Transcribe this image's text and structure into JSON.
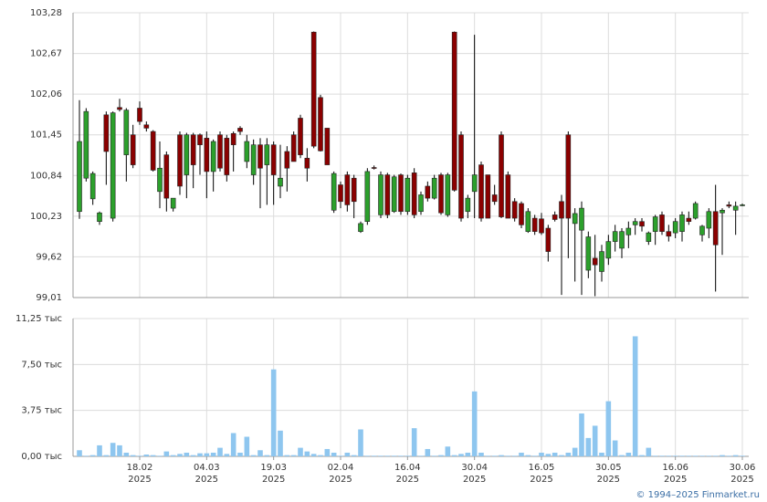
{
  "chart_data": [
    {
      "type": "candlestick",
      "up_color": "#2ca02c",
      "down_color": "#8b0000",
      "ylim": [
        99.01,
        103.28
      ],
      "yticks": [
        {
          "value": 99.01,
          "label": "99,01"
        },
        {
          "value": 99.62,
          "label": "99,62"
        },
        {
          "value": 100.23,
          "label": "100,23"
        },
        {
          "value": 100.84,
          "label": "100,84"
        },
        {
          "value": 101.45,
          "label": "101,45"
        },
        {
          "value": 102.06,
          "label": "102,06"
        },
        {
          "value": 102.67,
          "label": "102,67"
        },
        {
          "value": 103.28,
          "label": "103,28"
        }
      ],
      "grid": true,
      "open": [
        100.3,
        100.8,
        100.49,
        100.15,
        101.75,
        100.2,
        101.86,
        101.15,
        101.45,
        101.85,
        101.6,
        101.5,
        100.6,
        101.15,
        100.35,
        101.45,
        100.85,
        101.45,
        101.45,
        101.4,
        100.9,
        101.45,
        101.4,
        101.47,
        101.55,
        101.05,
        100.85,
        101.3,
        101.0,
        101.3,
        100.68,
        101.2,
        101.45,
        101.7,
        101.1,
        102.99,
        102.01,
        101.55,
        100.32,
        100.7,
        100.85,
        100.8,
        100.0,
        100.15,
        100.96,
        100.25,
        100.85,
        100.3,
        100.85,
        100.3,
        100.88,
        100.3,
        100.68,
        100.5,
        100.85,
        100.25,
        102.99,
        101.45,
        100.3,
        100.6,
        101.0,
        100.85,
        100.55,
        101.45,
        100.85,
        100.45,
        100.42,
        100.0,
        100.2,
        100.19,
        100.05,
        100.25,
        100.45,
        101.45,
        100.12,
        100.02,
        99.42,
        99.6,
        99.4,
        99.6,
        99.85,
        99.75,
        99.95,
        100.1,
        100.15,
        99.85,
        100.0,
        100.25,
        100.0,
        99.98,
        100.0,
        100.2,
        100.2,
        99.95,
        100.05,
        100.3,
        100.28,
        100.4,
        100.32,
        100.4
      ],
      "high": [
        101.97,
        101.85,
        100.9,
        100.3,
        101.8,
        101.8,
        101.99,
        101.85,
        101.6,
        101.95,
        101.65,
        101.52,
        101.35,
        101.2,
        100.5,
        101.5,
        101.48,
        101.48,
        101.47,
        101.5,
        101.38,
        101.5,
        101.45,
        101.5,
        101.58,
        101.45,
        101.38,
        101.4,
        101.4,
        101.35,
        101.3,
        101.28,
        101.5,
        101.75,
        101.25,
        103.0,
        102.05,
        101.55,
        100.9,
        100.75,
        100.9,
        100.85,
        100.15,
        100.95,
        100.99,
        100.9,
        100.88,
        100.85,
        100.87,
        100.85,
        100.95,
        100.6,
        100.75,
        100.85,
        100.88,
        100.88,
        103.0,
        101.5,
        100.55,
        102.95,
        101.05,
        100.85,
        100.7,
        101.5,
        100.9,
        100.5,
        100.45,
        100.35,
        100.25,
        100.28,
        100.1,
        100.3,
        100.55,
        101.5,
        100.35,
        100.45,
        100.0,
        99.95,
        99.8,
        99.95,
        100.1,
        100.05,
        100.15,
        100.2,
        100.2,
        100.0,
        100.25,
        100.3,
        100.1,
        100.2,
        100.3,
        100.3,
        100.45,
        100.1,
        100.35,
        100.7,
        100.35,
        100.45,
        100.45,
        100.42
      ],
      "low": [
        100.19,
        100.75,
        100.4,
        100.1,
        100.7,
        100.15,
        101.8,
        100.75,
        100.95,
        101.6,
        101.5,
        100.9,
        100.35,
        100.3,
        100.3,
        100.55,
        100.5,
        100.65,
        100.85,
        100.5,
        100.6,
        100.9,
        100.75,
        100.9,
        101.45,
        100.95,
        100.7,
        100.35,
        100.4,
        100.4,
        100.5,
        100.6,
        101.05,
        101.1,
        100.75,
        101.25,
        101.2,
        101.0,
        100.28,
        100.35,
        100.3,
        100.2,
        99.98,
        100.1,
        100.93,
        100.2,
        100.2,
        100.28,
        100.25,
        100.25,
        100.2,
        100.25,
        100.45,
        100.48,
        100.25,
        100.22,
        100.6,
        100.15,
        100.2,
        100.2,
        100.15,
        100.2,
        100.4,
        100.2,
        100.2,
        100.15,
        100.05,
        99.98,
        99.95,
        99.95,
        99.55,
        100.15,
        99.05,
        99.6,
        99.25,
        99.05,
        99.3,
        99.03,
        99.25,
        99.5,
        99.7,
        99.6,
        99.75,
        99.95,
        100.0,
        99.8,
        99.8,
        99.95,
        99.85,
        99.9,
        99.85,
        100.1,
        100.18,
        99.85,
        99.9,
        99.1,
        99.65,
        100.35,
        99.95,
        100.38
      ],
      "close": [
        101.35,
        101.8,
        100.87,
        100.28,
        101.2,
        101.78,
        101.83,
        101.82,
        101.0,
        101.65,
        101.55,
        100.92,
        100.95,
        100.5,
        100.5,
        100.68,
        101.45,
        101.0,
        101.3,
        100.9,
        101.35,
        100.95,
        100.85,
        101.3,
        101.5,
        101.35,
        101.3,
        100.95,
        101.3,
        100.85,
        100.8,
        100.95,
        101.05,
        101.15,
        100.95,
        101.28,
        101.21,
        101.0,
        100.87,
        100.45,
        100.4,
        100.45,
        100.12,
        100.9,
        100.95,
        100.85,
        100.25,
        100.82,
        100.3,
        100.8,
        100.25,
        100.55,
        100.5,
        100.8,
        100.28,
        100.85,
        100.62,
        100.2,
        100.5,
        100.85,
        100.2,
        100.2,
        100.45,
        100.22,
        100.2,
        100.2,
        100.1,
        100.3,
        100.0,
        99.98,
        99.7,
        100.18,
        100.2,
        100.2,
        100.27,
        100.35,
        99.92,
        99.5,
        99.7,
        99.85,
        100.0,
        100.0,
        100.05,
        100.15,
        100.08,
        99.98,
        100.22,
        100.0,
        99.93,
        100.15,
        100.25,
        100.15,
        100.42,
        100.08,
        100.3,
        99.8,
        100.32,
        100.38,
        100.38,
        100.4
      ]
    },
    {
      "type": "bar",
      "color": "#8ec6ef",
      "ylim": [
        0,
        11.25
      ],
      "yticks": [
        {
          "value": 0,
          "label": "0,00 тыс"
        },
        {
          "value": 3.75,
          "label": "3,75 тыс"
        },
        {
          "value": 7.5,
          "label": "7,50 тыс"
        },
        {
          "value": 11.25,
          "label": "11,25 тыс"
        }
      ],
      "grid": true,
      "year_label": "2025",
      "categories": [
        null,
        null,
        null,
        null,
        null,
        null,
        null,
        null,
        null,
        "18.02",
        null,
        null,
        null,
        null,
        null,
        null,
        null,
        null,
        null,
        "04.03",
        null,
        null,
        null,
        null,
        null,
        null,
        null,
        null,
        null,
        "19.03",
        null,
        null,
        null,
        null,
        null,
        null,
        null,
        null,
        null,
        "02.04",
        null,
        null,
        null,
        null,
        null,
        null,
        null,
        null,
        null,
        "16.04",
        null,
        null,
        null,
        null,
        null,
        null,
        null,
        null,
        null,
        "30.04",
        null,
        null,
        null,
        null,
        null,
        null,
        null,
        null,
        null,
        "16.05",
        null,
        null,
        null,
        null,
        null,
        null,
        null,
        null,
        null,
        "30.05",
        null,
        null,
        null,
        null,
        null,
        null,
        null,
        null,
        null,
        "16.06",
        null,
        null,
        null,
        null,
        null,
        null,
        null,
        null,
        null,
        "30.06"
      ],
      "values": [
        0.5,
        0.05,
        0.1,
        0.9,
        0.1,
        1.1,
        0.9,
        0.3,
        0.1,
        0.05,
        0.15,
        0.1,
        0.05,
        0.4,
        0.1,
        0.2,
        0.3,
        0.1,
        0.25,
        0.25,
        0.3,
        0.7,
        0.2,
        1.9,
        0.3,
        1.6,
        0.1,
        0.5,
        0.1,
        7.1,
        2.1,
        0.1,
        0.1,
        0.7,
        0.4,
        0.2,
        0.1,
        0.6,
        0.3,
        0.05,
        0.3,
        0.1,
        2.2,
        0.05,
        0.05,
        0.05,
        0.05,
        0.05,
        0.05,
        0.05,
        2.3,
        0.05,
        0.6,
        0.05,
        0.1,
        0.8,
        0.1,
        0.2,
        0.3,
        5.3,
        0.3,
        0.05,
        0.05,
        0.1,
        0.05,
        0.05,
        0.3,
        0.1,
        0.05,
        0.3,
        0.2,
        0.3,
        0.1,
        0.3,
        0.7,
        3.5,
        1.5,
        2.5,
        0.3,
        4.5,
        1.3,
        0.1,
        0.3,
        9.8,
        0.1,
        0.7,
        0.05,
        0.05,
        0.05,
        0.05,
        0.05,
        0.05,
        0.05,
        0.05,
        0.05,
        0.05,
        0.1,
        0.05,
        0.1,
        0.05
      ]
    }
  ],
  "footer": "© 1994–2025 Finmarket.ru"
}
